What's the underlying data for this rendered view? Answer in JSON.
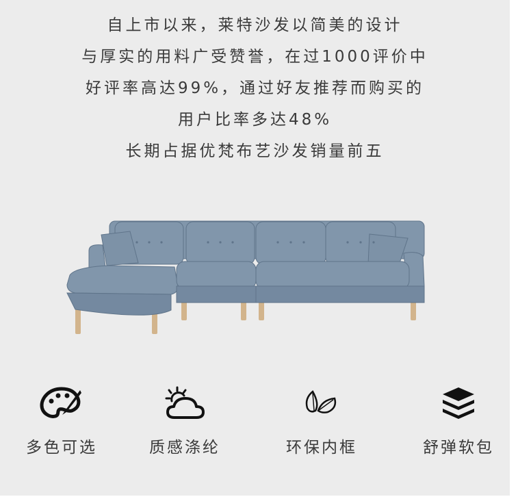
{
  "intro": {
    "lines": [
      "自上市以来，莱特沙发以简美的设计",
      "与厚实的用料广受赞誉，在过1000评价中",
      "好评率高达99%，通过好友推荐而购买的",
      "用户比率多达48%",
      "长期占据优梵布艺沙发销量前五"
    ]
  },
  "product": {
    "image_icon": "sofa-illustration",
    "fabric_color": "#7f95ab"
  },
  "features": [
    {
      "label": "多色可选",
      "icon": "palette-icon"
    },
    {
      "label": "质感涤纶",
      "icon": "cloud-sun-icon"
    },
    {
      "label": "环保内框",
      "icon": "leaves-icon"
    },
    {
      "label": "舒弹软包",
      "icon": "layers-icon"
    }
  ],
  "colors": {
    "background": "#ececec",
    "text": "#3a3a3a",
    "icon": "#111111"
  }
}
